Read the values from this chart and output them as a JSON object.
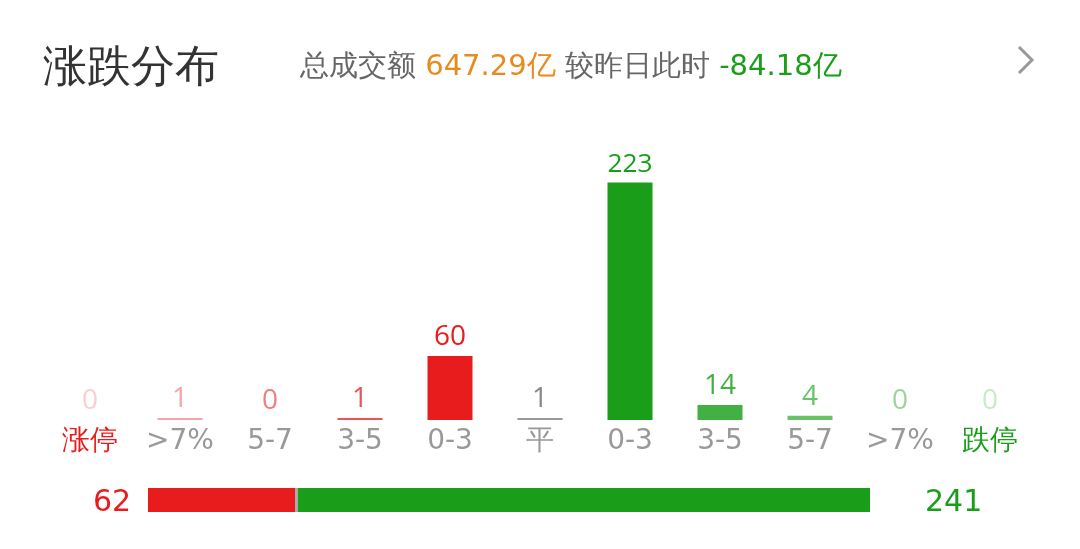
{
  "chart_data": [
    {
      "type": "bar",
      "title": "涨跌分布",
      "subtitle": "总成交额 647.29亿 较昨日此时 -84.18亿",
      "categories": [
        "涨停",
        ">7%",
        "5-7",
        "3-5",
        "0-3",
        "平",
        "0-3",
        "3-5",
        "5-7",
        ">7%",
        "跌停"
      ],
      "values": [
        0,
        1,
        0,
        1,
        60,
        1,
        223,
        14,
        4,
        0,
        0
      ],
      "colors": [
        "#f9cfcf",
        "#f4a5a5",
        "#ef8080",
        "#ea5656",
        "#e81c1c",
        "#999999",
        "#1a9e1a",
        "#42b042",
        "#68c268",
        "#9ad69a",
        "#c9e9c9"
      ],
      "data_labels": true,
      "tick_labels": "x",
      "grid": false,
      "legend": false
    },
    {
      "type": "bar",
      "orientation": "horizontal",
      "stacked": true,
      "categories": [
        null
      ],
      "tick_labels": false,
      "legend": false,
      "grid": false,
      "series": [
        {
          "color": "#e81c1c",
          "values": [
            62
          ],
          "value_labels": [
            "62"
          ]
        },
        {
          "color": "#aaaaaa",
          "values": [
            1
          ]
        },
        {
          "color": "#1a9e1a",
          "values": [
            241
          ],
          "value_labels": [
            "241"
          ]
        }
      ]
    }
  ]
}
